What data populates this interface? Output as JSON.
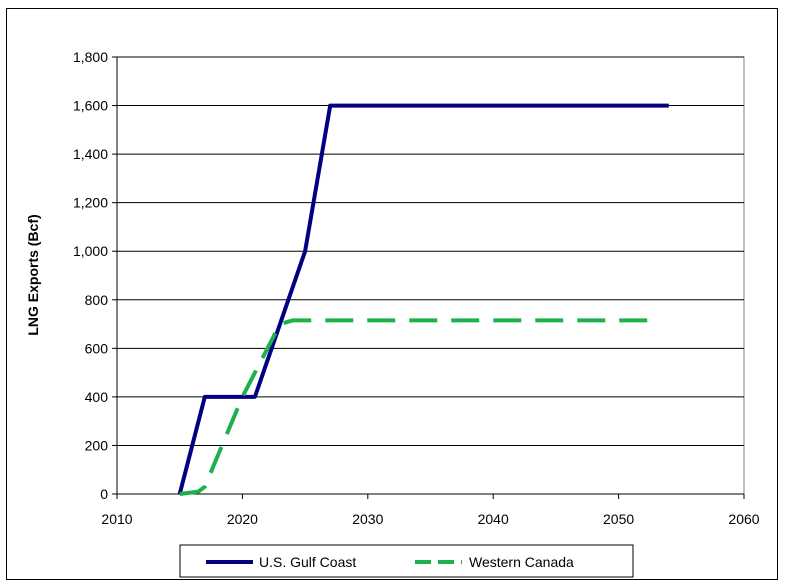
{
  "chart_data": {
    "type": "line",
    "title": "",
    "xlabel": "",
    "ylabel": "LNG Exports (Bcf)",
    "xlim": [
      2010,
      2060
    ],
    "ylim": [
      0,
      1800
    ],
    "x_ticks": [
      2010,
      2020,
      2030,
      2040,
      2050,
      2060
    ],
    "x_tick_labels": [
      "2010",
      "2020",
      "2030",
      "2040",
      "2050",
      "2060"
    ],
    "y_ticks": [
      0,
      200,
      400,
      600,
      800,
      1000,
      1200,
      1400,
      1600,
      1800
    ],
    "y_tick_labels": [
      "0",
      "200",
      "400",
      "600",
      "800",
      "1,000",
      "1,200",
      "1,400",
      "1,600",
      "1,800"
    ],
    "grid": "horizontal",
    "legend": "bottom",
    "series": [
      {
        "name": "U.S. Gulf Coast",
        "color": "#000080",
        "style": "solid",
        "points": [
          [
            2015,
            0
          ],
          [
            2017,
            400
          ],
          [
            2021,
            400
          ],
          [
            2025,
            1000
          ],
          [
            2027,
            1600
          ],
          [
            2054,
            1600
          ]
        ]
      },
      {
        "name": "Western Canada",
        "color": "#1db14b",
        "style": "dashed",
        "points": [
          [
            2015,
            0
          ],
          [
            2016.5,
            10
          ],
          [
            2017,
            30
          ],
          [
            2020,
            400
          ],
          [
            2022,
            600
          ],
          [
            2023,
            700
          ],
          [
            2024,
            715
          ],
          [
            2053,
            715
          ]
        ]
      }
    ]
  }
}
